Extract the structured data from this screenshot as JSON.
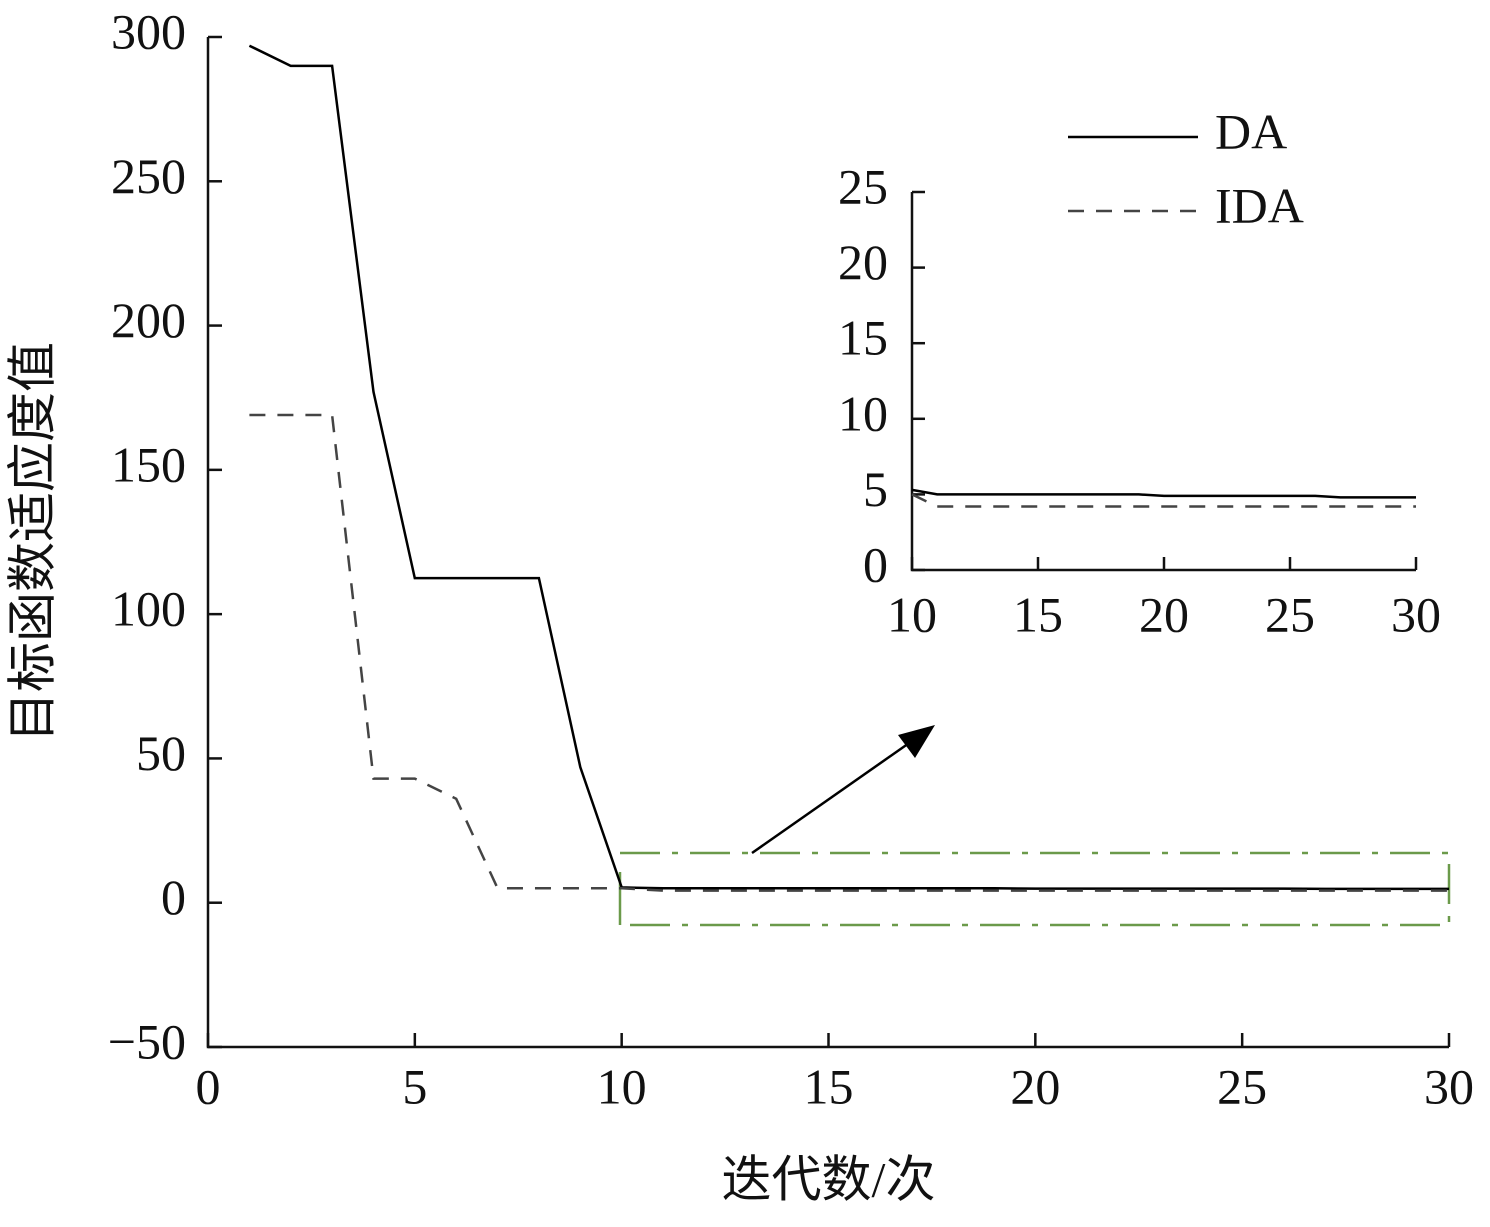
{
  "chart_data": [
    {
      "type": "line",
      "x_label": "迭代数/次",
      "y_label": "目标函数适应度值",
      "x": [
        1,
        2,
        3,
        4,
        5,
        6,
        7,
        8,
        9,
        10,
        11,
        12,
        13,
        14,
        15,
        16,
        17,
        18,
        19,
        20,
        21,
        22,
        23,
        24,
        25,
        26,
        27,
        28,
        29,
        30
      ],
      "series": [
        {
          "name": "DA",
          "color": "#000000",
          "line_style": "solid",
          "values": [
            297,
            290,
            290,
            177,
            112.5,
            112.5,
            112.5,
            112.5,
            47,
            5.3,
            5.0,
            5.0,
            5.0,
            5.0,
            5.0,
            5.0,
            5.0,
            5.0,
            5.0,
            4.9,
            4.9,
            4.9,
            4.9,
            4.9,
            4.9,
            4.9,
            4.8,
            4.8,
            4.8,
            4.8
          ]
        },
        {
          "name": "IDA",
          "color": "#444444",
          "line_style": "dashed",
          "values": [
            169,
            169,
            169,
            43,
            43,
            36,
            5,
            5,
            5,
            5,
            4.2,
            4.2,
            4.2,
            4.2,
            4.2,
            4.2,
            4.2,
            4.2,
            4.2,
            4.2,
            4.2,
            4.2,
            4.2,
            4.2,
            4.2,
            4.2,
            4.2,
            4.2,
            4.2,
            4.2
          ]
        }
      ],
      "xlim": [
        0,
        30
      ],
      "xticks": [
        0,
        5,
        10,
        15,
        20,
        25,
        30
      ],
      "ylim": [
        -50,
        300
      ],
      "yticks": [
        {
          "value": -50,
          "label": "−50"
        },
        0,
        50,
        100,
        150,
        200,
        250,
        300
      ],
      "legend": "upper right"
    },
    {
      "type": "line",
      "x": [
        10,
        11,
        12,
        13,
        14,
        15,
        16,
        17,
        18,
        19,
        20,
        21,
        22,
        23,
        24,
        25,
        26,
        27,
        28,
        29,
        30
      ],
      "series": [
        {
          "color": "#000000",
          "line_style": "solid",
          "values": [
            5.3,
            5.0,
            5.0,
            5.0,
            5.0,
            5.0,
            5.0,
            5.0,
            5.0,
            5.0,
            4.9,
            4.9,
            4.9,
            4.9,
            4.9,
            4.9,
            4.9,
            4.8,
            4.8,
            4.8,
            4.8
          ]
        },
        {
          "color": "#444444",
          "line_style": "dashed",
          "values": [
            5,
            4.2,
            4.2,
            4.2,
            4.2,
            4.2,
            4.2,
            4.2,
            4.2,
            4.2,
            4.2,
            4.2,
            4.2,
            4.2,
            4.2,
            4.2,
            4.2,
            4.2,
            4.2,
            4.2,
            4.2
          ]
        }
      ],
      "xlim": [
        10,
        30
      ],
      "xticks": [
        10,
        15,
        20,
        25,
        30
      ],
      "ylim": [
        0,
        25
      ],
      "yticks": [
        0,
        5,
        10,
        15,
        20,
        25
      ]
    }
  ]
}
